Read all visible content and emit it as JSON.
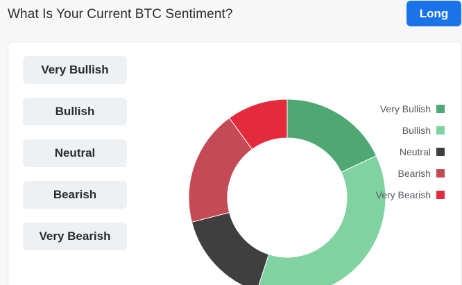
{
  "header": {
    "title": "What Is Your Current BTC Sentiment?",
    "long_label": "Long",
    "long_color": "#1a73e8"
  },
  "options": [
    {
      "label": "Very Bullish"
    },
    {
      "label": "Bullish"
    },
    {
      "label": "Neutral"
    },
    {
      "label": "Bearish"
    },
    {
      "label": "Very Bearish"
    }
  ],
  "chart_data": {
    "type": "pie",
    "donut": true,
    "categories": [
      "Very Bullish",
      "Bullish",
      "Neutral",
      "Bearish",
      "Very Bearish"
    ],
    "values": [
      18,
      37,
      16,
      19,
      10
    ],
    "colors": [
      "#4fa871",
      "#80d3a0",
      "#3f3f3f",
      "#c44a55",
      "#e32b3c"
    ],
    "legend_position": "right"
  }
}
